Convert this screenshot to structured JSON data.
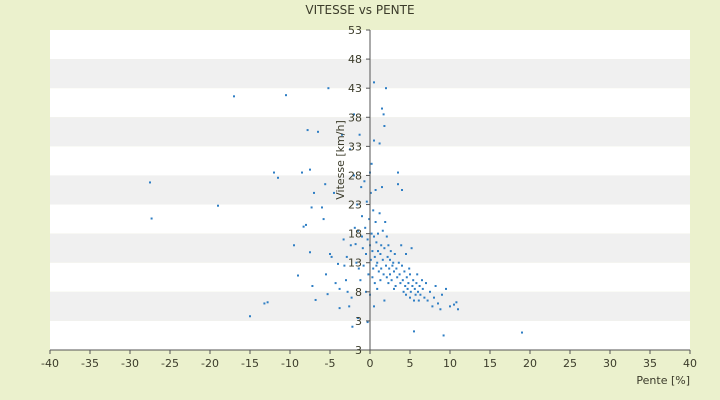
{
  "chart_data": {
    "type": "scatter",
    "title": "VITESSE vs PENTE",
    "xlabel": "Pente [%]",
    "ylabel": "Vitesse [km/h]",
    "xlim": [
      -40,
      40
    ],
    "ylim": [
      -2,
      53
    ],
    "x_ticks": [
      "-40",
      "-35",
      "-30",
      "-25",
      "-20",
      "-15",
      "-10",
      "-5",
      "0",
      "5",
      "10",
      "15",
      "20",
      "25",
      "30",
      "35",
      "40"
    ],
    "y_ticks": [
      "3",
      "3",
      "8",
      "13",
      "18",
      "23",
      "28",
      "33",
      "38",
      "43",
      "48",
      "53"
    ],
    "grid": "horizontal alternating bands",
    "colors": {
      "background": "#ebf1cd",
      "plot_band_light": "#ffffff",
      "plot_band_dark": "#f0f0f0",
      "marker": "#2e7ec4",
      "axis": "#555555",
      "text": "#3b3b2a"
    },
    "points": [
      [
        -17.0,
        41.6
      ],
      [
        -10.5,
        41.8
      ],
      [
        -5.2,
        43.0
      ],
      [
        -27.5,
        26.8
      ],
      [
        -27.3,
        20.6
      ],
      [
        -19.0,
        22.8
      ],
      [
        -15.0,
        3.8
      ],
      [
        -13.2,
        6.0
      ],
      [
        -12.8,
        6.2
      ],
      [
        -12.0,
        28.5
      ],
      [
        -11.5,
        27.6
      ],
      [
        -9.5,
        16.0
      ],
      [
        -9.0,
        10.8
      ],
      [
        -8.3,
        19.2
      ],
      [
        -8.0,
        19.5
      ],
      [
        -7.5,
        29.0
      ],
      [
        -8.5,
        28.5
      ],
      [
        -7.8,
        35.8
      ],
      [
        -6.5,
        35.5
      ],
      [
        -7.0,
        25.0
      ],
      [
        -7.3,
        22.5
      ],
      [
        -7.5,
        14.8
      ],
      [
        -7.2,
        9.0
      ],
      [
        -6.8,
        6.6
      ],
      [
        -6.0,
        22.5
      ],
      [
        -5.8,
        20.5
      ],
      [
        -5.6,
        26.5
      ],
      [
        -5.5,
        11.0
      ],
      [
        -5.3,
        7.6
      ],
      [
        -5.0,
        14.5
      ],
      [
        -4.8,
        14.0
      ],
      [
        -4.5,
        25.0
      ],
      [
        -4.3,
        9.5
      ],
      [
        -4.0,
        12.8
      ],
      [
        -3.8,
        5.2
      ],
      [
        -3.5,
        35.0
      ],
      [
        -3.3,
        17.0
      ],
      [
        -3.2,
        12.5
      ],
      [
        -3.0,
        10.0
      ],
      [
        -2.9,
        14.0
      ],
      [
        -2.8,
        8.0
      ],
      [
        -2.5,
        32.5
      ],
      [
        -2.4,
        16.0
      ],
      [
        -2.3,
        7.0
      ],
      [
        -2.2,
        2.0
      ],
      [
        -2.0,
        38.5
      ],
      [
        -2.0,
        28.0
      ],
      [
        -1.9,
        19.0
      ],
      [
        -1.8,
        16.2
      ],
      [
        -1.7,
        13.0
      ],
      [
        -1.6,
        23.0
      ],
      [
        -1.5,
        18.5
      ],
      [
        -1.4,
        12.0
      ],
      [
        -1.3,
        35.0
      ],
      [
        -1.2,
        10.0
      ],
      [
        -1.1,
        26.0
      ],
      [
        -1.0,
        21.0
      ],
      [
        -1.0,
        17.5
      ],
      [
        -0.9,
        15.5
      ],
      [
        -0.8,
        12.5
      ],
      [
        -0.7,
        27.0
      ],
      [
        -0.6,
        19.0
      ],
      [
        -0.5,
        14.5
      ],
      [
        -0.5,
        8.0
      ],
      [
        -0.4,
        23.5
      ],
      [
        -0.3,
        17.0
      ],
      [
        -0.2,
        11.0
      ],
      [
        -0.1,
        20.5
      ],
      [
        0.0,
        28.5
      ],
      [
        0.0,
        16.0
      ],
      [
        0.0,
        7.5
      ],
      [
        0.1,
        13.5
      ],
      [
        0.1,
        25.0
      ],
      [
        0.2,
        30.0
      ],
      [
        0.2,
        18.0
      ],
      [
        0.3,
        10.5
      ],
      [
        0.3,
        15.0
      ],
      [
        0.4,
        22.0
      ],
      [
        0.4,
        12.0
      ],
      [
        0.5,
        44.0
      ],
      [
        0.5,
        34.0
      ],
      [
        0.5,
        17.5
      ],
      [
        0.6,
        14.0
      ],
      [
        0.6,
        9.5
      ],
      [
        0.7,
        20.0
      ],
      [
        0.7,
        25.5
      ],
      [
        0.8,
        16.5
      ],
      [
        0.8,
        12.5
      ],
      [
        0.9,
        13.0
      ],
      [
        0.9,
        8.5
      ],
      [
        1.0,
        18.0
      ],
      [
        1.0,
        15.0
      ],
      [
        1.1,
        11.5
      ],
      [
        1.2,
        33.5
      ],
      [
        1.2,
        21.5
      ],
      [
        1.3,
        14.5
      ],
      [
        1.3,
        10.0
      ],
      [
        1.4,
        16.0
      ],
      [
        1.4,
        12.0
      ],
      [
        1.5,
        39.5
      ],
      [
        1.5,
        26.0
      ],
      [
        1.6,
        18.5
      ],
      [
        1.6,
        13.5
      ],
      [
        1.7,
        38.5
      ],
      [
        1.7,
        11.0
      ],
      [
        1.8,
        36.5
      ],
      [
        1.8,
        15.5
      ],
      [
        1.9,
        20.0
      ],
      [
        2.0,
        43.0
      ],
      [
        2.0,
        12.5
      ],
      [
        2.1,
        17.5
      ],
      [
        2.1,
        10.5
      ],
      [
        2.2,
        14.0
      ],
      [
        2.3,
        16.0
      ],
      [
        2.3,
        9.5
      ],
      [
        2.4,
        12.0
      ],
      [
        2.5,
        13.5
      ],
      [
        2.5,
        11.0
      ],
      [
        2.6,
        15.0
      ],
      [
        2.7,
        10.0
      ],
      [
        2.8,
        12.5
      ],
      [
        2.9,
        13.0
      ],
      [
        3.0,
        8.5
      ],
      [
        3.0,
        11.5
      ],
      [
        3.1,
        14.5
      ],
      [
        3.2,
        9.0
      ],
      [
        3.3,
        12.0
      ],
      [
        3.4,
        10.5
      ],
      [
        3.5,
        28.5
      ],
      [
        3.5,
        26.5
      ],
      [
        3.6,
        13.0
      ],
      [
        3.7,
        11.0
      ],
      [
        3.8,
        9.5
      ],
      [
        3.9,
        16.0
      ],
      [
        4.0,
        12.5
      ],
      [
        4.0,
        25.5
      ],
      [
        4.1,
        10.0
      ],
      [
        4.2,
        8.0
      ],
      [
        4.3,
        11.5
      ],
      [
        4.4,
        9.0
      ],
      [
        4.5,
        14.5
      ],
      [
        4.5,
        7.5
      ],
      [
        4.6,
        10.5
      ],
      [
        4.7,
        8.5
      ],
      [
        4.8,
        9.5
      ],
      [
        4.9,
        12.0
      ],
      [
        5.0,
        7.0
      ],
      [
        5.0,
        11.0
      ],
      [
        5.1,
        8.0
      ],
      [
        5.2,
        15.5
      ],
      [
        5.3,
        9.0
      ],
      [
        5.4,
        10.0
      ],
      [
        5.5,
        6.5
      ],
      [
        5.6,
        8.5
      ],
      [
        5.7,
        7.5
      ],
      [
        5.8,
        9.5
      ],
      [
        5.9,
        11.0
      ],
      [
        6.0,
        8.0
      ],
      [
        6.1,
        6.5
      ],
      [
        6.2,
        9.0
      ],
      [
        6.3,
        7.5
      ],
      [
        6.5,
        10.0
      ],
      [
        6.6,
        8.5
      ],
      [
        6.8,
        7.0
      ],
      [
        7.0,
        9.5
      ],
      [
        7.2,
        6.5
      ],
      [
        7.5,
        8.0
      ],
      [
        7.8,
        5.5
      ],
      [
        8.0,
        7.0
      ],
      [
        8.2,
        9.0
      ],
      [
        8.5,
        6.0
      ],
      [
        8.8,
        5.0
      ],
      [
        9.0,
        7.5
      ],
      [
        9.5,
        8.5
      ],
      [
        10.0,
        5.5
      ],
      [
        10.5,
        5.8
      ],
      [
        10.8,
        6.2
      ],
      [
        11.0,
        5.0
      ],
      [
        9.2,
        0.5
      ],
      [
        5.5,
        1.2
      ],
      [
        19.0,
        1.0
      ],
      [
        -3.8,
        8.5
      ],
      [
        -2.6,
        5.5
      ],
      [
        -1.5,
        3.5
      ],
      [
        0.5,
        5.5
      ],
      [
        1.8,
        6.5
      ],
      [
        -0.3,
        2.8
      ]
    ]
  }
}
